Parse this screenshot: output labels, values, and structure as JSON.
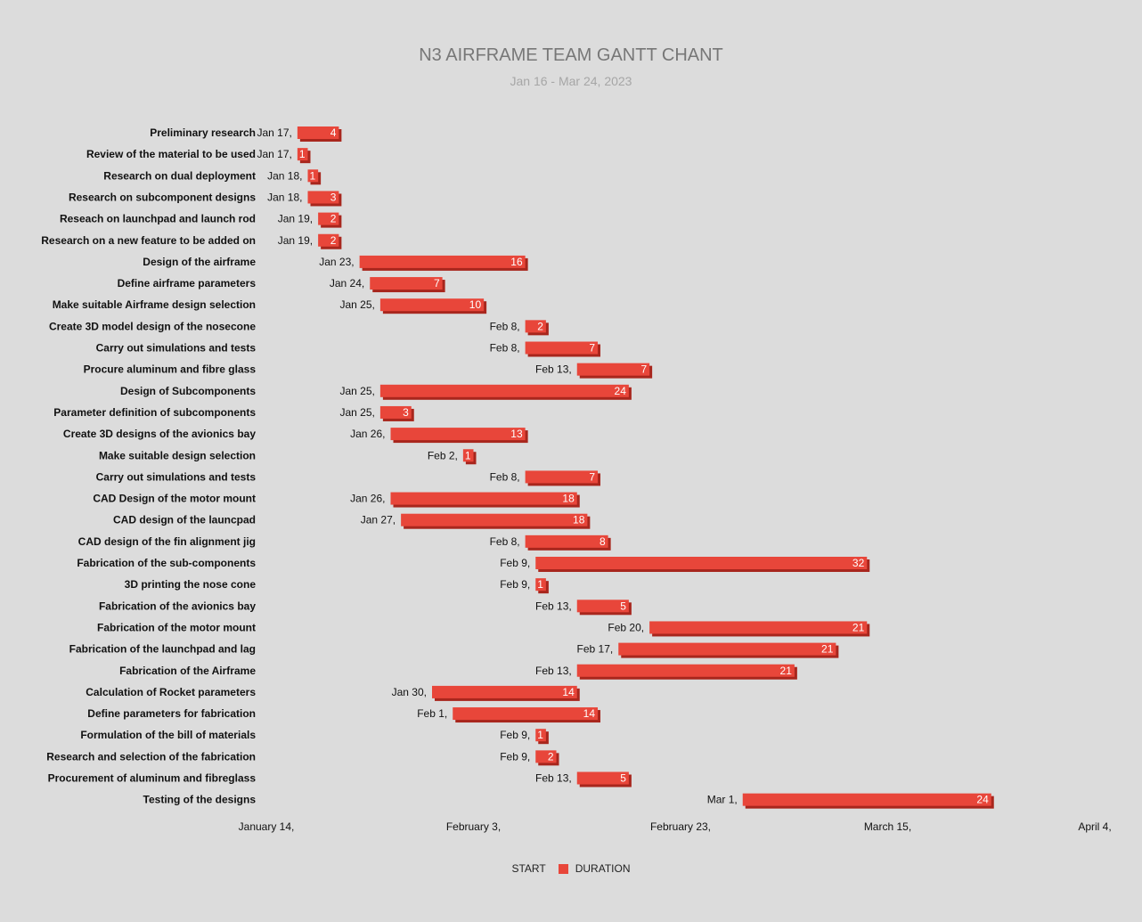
{
  "chart_data": {
    "type": "gantt",
    "title": "N3 AIRFRAME TEAM GANTT CHANT",
    "subtitle": "Jan 16 - Mar 24, 2023",
    "x_tick_labels": [
      "January 14,",
      "February 3,",
      "February 23,",
      "March 15,",
      "April 4,"
    ],
    "x_ticks": [
      "2023-01-14",
      "2023-02-03",
      "2023-02-23",
      "2023-03-15",
      "2023-04-04"
    ],
    "xlim": [
      "2023-01-14",
      "2023-04-04"
    ],
    "legend": [
      "START",
      "DURATION"
    ],
    "colors": {
      "bar": "#e8463a",
      "bar_shadow": "#a8261d",
      "background": "#dcdcdc"
    },
    "tasks": [
      {
        "name": "Preliminary research",
        "start": "2023-01-17",
        "start_label": "Jan 17,",
        "duration": 4
      },
      {
        "name": "Review of the material to be used",
        "start": "2023-01-17",
        "start_label": "Jan 17,",
        "duration": 1
      },
      {
        "name": "Research on dual deployment",
        "start": "2023-01-18",
        "start_label": "Jan 18,",
        "duration": 1
      },
      {
        "name": "Research on subcomponent designs",
        "start": "2023-01-18",
        "start_label": "Jan 18,",
        "duration": 3
      },
      {
        "name": "Reseach on launchpad and launch rod",
        "start": "2023-01-19",
        "start_label": "Jan 19,",
        "duration": 2
      },
      {
        "name": "Research on a new feature to be added on",
        "start": "2023-01-19",
        "start_label": "Jan 19,",
        "duration": 2
      },
      {
        "name": "Design of the airframe",
        "start": "2023-01-23",
        "start_label": "Jan 23,",
        "duration": 16
      },
      {
        "name": "Define airframe parameters",
        "start": "2023-01-24",
        "start_label": "Jan 24,",
        "duration": 7
      },
      {
        "name": "Make suitable Airframe design selection",
        "start": "2023-01-25",
        "start_label": "Jan 25,",
        "duration": 10
      },
      {
        "name": "Create 3D model design of the nosecone",
        "start": "2023-02-08",
        "start_label": "Feb 8,",
        "duration": 2
      },
      {
        "name": "Carry out simulations and tests",
        "start": "2023-02-08",
        "start_label": "Feb 8,",
        "duration": 7
      },
      {
        "name": "Procure aluminum and fibre glass",
        "start": "2023-02-13",
        "start_label": "Feb 13,",
        "duration": 7
      },
      {
        "name": "Design of Subcomponents",
        "start": "2023-01-25",
        "start_label": "Jan 25,",
        "duration": 24
      },
      {
        "name": "Parameter definition of subcomponents",
        "start": "2023-01-25",
        "start_label": "Jan 25,",
        "duration": 3
      },
      {
        "name": "Create 3D designs of the avionics bay",
        "start": "2023-01-26",
        "start_label": "Jan 26,",
        "duration": 13
      },
      {
        "name": "Make suitable design selection",
        "start": "2023-02-02",
        "start_label": "Feb 2,",
        "duration": 1
      },
      {
        "name": "Carry out simulations and tests",
        "start": "2023-02-08",
        "start_label": "Feb 8,",
        "duration": 7
      },
      {
        "name": "CAD Design of the motor mount",
        "start": "2023-01-26",
        "start_label": "Jan 26,",
        "duration": 18
      },
      {
        "name": "CAD design of the launcpad",
        "start": "2023-01-27",
        "start_label": "Jan 27,",
        "duration": 18
      },
      {
        "name": "CAD design of the fin alignment jig",
        "start": "2023-02-08",
        "start_label": "Feb 8,",
        "duration": 8
      },
      {
        "name": "Fabrication of the sub-components",
        "start": "2023-02-09",
        "start_label": "Feb 9,",
        "duration": 32
      },
      {
        "name": "3D printing the nose cone",
        "start": "2023-02-09",
        "start_label": "Feb 9,",
        "duration": 1
      },
      {
        "name": "Fabrication of the avionics bay",
        "start": "2023-02-13",
        "start_label": "Feb 13,",
        "duration": 5
      },
      {
        "name": "Fabrication of the motor mount",
        "start": "2023-02-20",
        "start_label": "Feb 20,",
        "duration": 21
      },
      {
        "name": "Fabrication of the launchpad and lag",
        "start": "2023-02-17",
        "start_label": "Feb 17,",
        "duration": 21
      },
      {
        "name": "Fabrication of the Airframe",
        "start": "2023-02-13",
        "start_label": "Feb 13,",
        "duration": 21
      },
      {
        "name": "Calculation of Rocket parameters",
        "start": "2023-01-30",
        "start_label": "Jan 30,",
        "duration": 14
      },
      {
        "name": "Define parameters for fabrication",
        "start": "2023-02-01",
        "start_label": "Feb 1,",
        "duration": 14
      },
      {
        "name": "Formulation of the bill of materials",
        "start": "2023-02-09",
        "start_label": "Feb 9,",
        "duration": 1
      },
      {
        "name": "Research and selection of the fabrication",
        "start": "2023-02-09",
        "start_label": "Feb 9,",
        "duration": 2
      },
      {
        "name": "Procurement of aluminum and fibreglass",
        "start": "2023-02-13",
        "start_label": "Feb 13,",
        "duration": 5
      },
      {
        "name": "Testing of the designs",
        "start": "2023-03-01",
        "start_label": "Mar 1,",
        "duration": 24
      }
    ]
  }
}
